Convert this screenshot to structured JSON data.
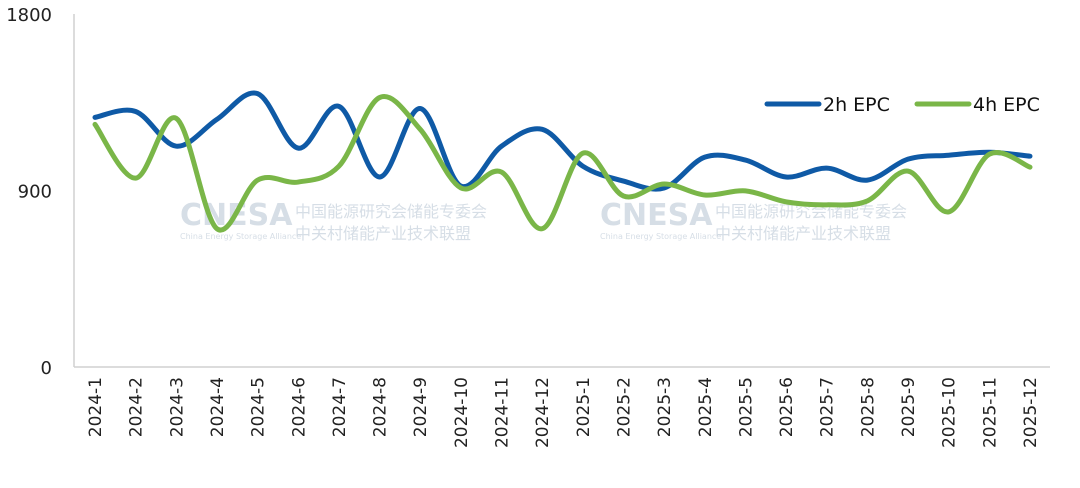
{
  "chart_data": {
    "type": "line",
    "title": "",
    "xlabel": "",
    "ylabel": "",
    "ylim": [
      0,
      1800
    ],
    "yticks": [
      "0",
      "900",
      "1800"
    ],
    "grid": false,
    "legend_position": "top-right",
    "categories": [
      "2024-1",
      "2024-2",
      "2024-3",
      "2024-4",
      "2024-5",
      "2024-6",
      "2024-7",
      "2024-8",
      "2024-9",
      "2024-10",
      "2024-11",
      "2024-12",
      "2025-1",
      "2025-2",
      "2025-3",
      "2025-4",
      "2025-5",
      "2025-6",
      "2025-7",
      "2025-8",
      "2025-9",
      "2025-10",
      "2025-11",
      "2025-12"
    ],
    "series": [
      {
        "name": "2h EPC",
        "color": "#0f5aa6",
        "smooth": true,
        "values": [
          1273,
          1303,
          1126,
          1263,
          1394,
          1116,
          1329,
          969,
          1318,
          923,
          1126,
          1212,
          1024,
          948,
          913,
          1070,
          1055,
          969,
          1014,
          953,
          1060,
          1080,
          1095,
          1075
        ]
      },
      {
        "name": "4h EPC",
        "color": "#7ab648",
        "smooth": true,
        "values": [
          1237,
          963,
          1268,
          705,
          953,
          943,
          1024,
          1374,
          1212,
          913,
          994,
          705,
          1090,
          872,
          933,
          877,
          898,
          842,
          827,
          847,
          999,
          791,
          1085,
          1019
        ]
      }
    ]
  },
  "watermark": {
    "logo": "CNESA",
    "subtitle": "China Energy Storage Alliance",
    "line1": "中国能源研究会储能专委会",
    "line2": "中关村储能产业技术联盟"
  }
}
